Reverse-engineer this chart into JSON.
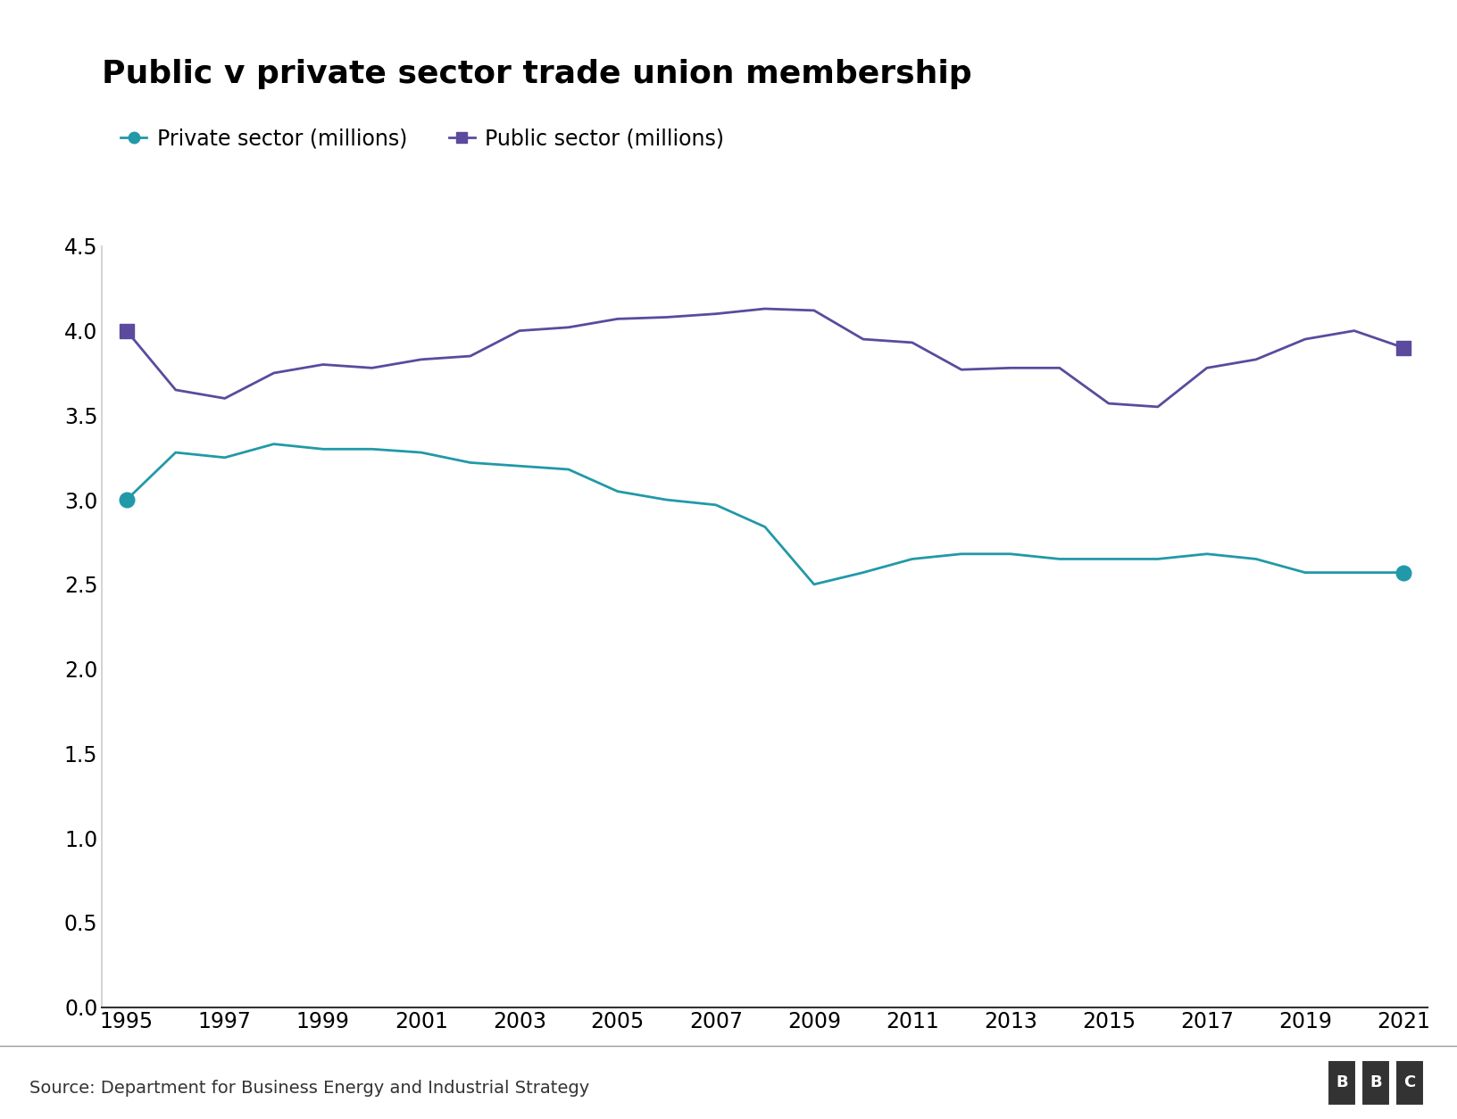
{
  "title": "Public v private sector trade union membership",
  "private_label": "Private sector (millions)",
  "public_label": "Public sector (millions)",
  "years": [
    1995,
    1996,
    1997,
    1998,
    1999,
    2000,
    2001,
    2002,
    2003,
    2004,
    2005,
    2006,
    2007,
    2008,
    2009,
    2010,
    2011,
    2012,
    2013,
    2014,
    2015,
    2016,
    2017,
    2018,
    2019,
    2020,
    2021
  ],
  "private_sector": [
    3.0,
    3.28,
    3.25,
    3.33,
    3.3,
    3.3,
    3.28,
    3.22,
    3.2,
    3.18,
    3.05,
    3.0,
    2.97,
    2.84,
    2.5,
    2.57,
    2.65,
    2.68,
    2.68,
    2.65,
    2.65,
    2.65,
    2.68,
    2.65,
    2.57,
    2.57,
    2.57
  ],
  "public_sector": [
    4.0,
    3.65,
    3.6,
    3.75,
    3.8,
    3.78,
    3.83,
    3.85,
    4.0,
    4.02,
    4.07,
    4.08,
    4.1,
    4.13,
    4.12,
    3.95,
    3.93,
    3.77,
    3.78,
    3.78,
    3.57,
    3.55,
    3.78,
    3.83,
    3.95,
    4.0,
    3.9
  ],
  "private_color": "#2199a8",
  "public_color": "#5b4a9e",
  "background_color": "#ffffff",
  "ylim": [
    0.0,
    4.5
  ],
  "yticks": [
    0.0,
    0.5,
    1.0,
    1.5,
    2.0,
    2.5,
    3.0,
    3.5,
    4.0,
    4.5
  ],
  "xticks": [
    1995,
    1997,
    1999,
    2001,
    2003,
    2005,
    2007,
    2009,
    2011,
    2013,
    2015,
    2017,
    2019,
    2021
  ],
  "source_text": "Source: Department for Business Energy and Industrial Strategy",
  "bbc_text": "BBC"
}
